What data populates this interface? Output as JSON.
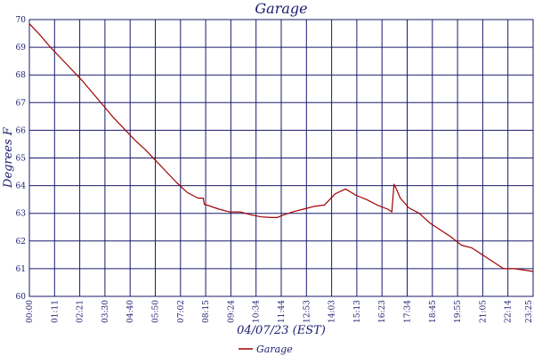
{
  "chart_data": {
    "type": "line",
    "title": "Garage",
    "xlabel": "04/07/23 (EST)",
    "ylabel": "Degrees F",
    "ylim": [
      60,
      70
    ],
    "yticks": [
      "60",
      "61",
      "62",
      "63",
      "64",
      "65",
      "66",
      "67",
      "68",
      "69",
      "70"
    ],
    "xticks": [
      "00:00",
      "01:11",
      "02:21",
      "03:30",
      "04:40",
      "05:50",
      "07:02",
      "08:15",
      "09:24",
      "10:34",
      "11:44",
      "12:53",
      "14:03",
      "15:13",
      "16:23",
      "17:34",
      "18:45",
      "19:55",
      "21:05",
      "22:14",
      "23:25"
    ],
    "grid": true,
    "legend_position": "bottom-center",
    "series": [
      {
        "name": "Garage",
        "color": "#a00000",
        "x_hours": [
          0.0,
          0.5,
          1.0,
          1.5,
          2.0,
          2.5,
          3.0,
          3.5,
          4.0,
          4.5,
          5.0,
          5.5,
          6.0,
          6.5,
          7.0,
          7.5,
          8.0,
          8.25,
          8.3,
          8.5,
          9.0,
          9.5,
          10.0,
          10.5,
          11.0,
          11.5,
          11.75,
          12.0,
          12.5,
          13.0,
          13.5,
          14.0,
          14.5,
          15.0,
          15.5,
          16.0,
          16.5,
          17.0,
          17.2,
          17.3,
          17.4,
          17.6,
          18.0,
          18.5,
          19.0,
          19.5,
          20.0,
          20.5,
          21.0,
          21.5,
          22.0,
          22.5,
          22.75,
          23.0,
          23.5,
          23.9
        ],
        "values": [
          69.85,
          69.45,
          69.0,
          68.6,
          68.2,
          67.8,
          67.35,
          66.9,
          66.45,
          66.05,
          65.65,
          65.3,
          64.9,
          64.5,
          64.1,
          63.75,
          63.55,
          63.55,
          63.32,
          63.28,
          63.15,
          63.05,
          63.05,
          62.95,
          62.87,
          62.85,
          62.85,
          62.93,
          63.05,
          63.15,
          63.25,
          63.3,
          63.7,
          63.88,
          63.65,
          63.5,
          63.3,
          63.15,
          63.05,
          64.05,
          63.9,
          63.55,
          63.2,
          63.0,
          62.65,
          62.4,
          62.15,
          61.85,
          61.75,
          61.5,
          61.25,
          61.0,
          61.0,
          61.0,
          60.95,
          60.9
        ]
      }
    ]
  }
}
